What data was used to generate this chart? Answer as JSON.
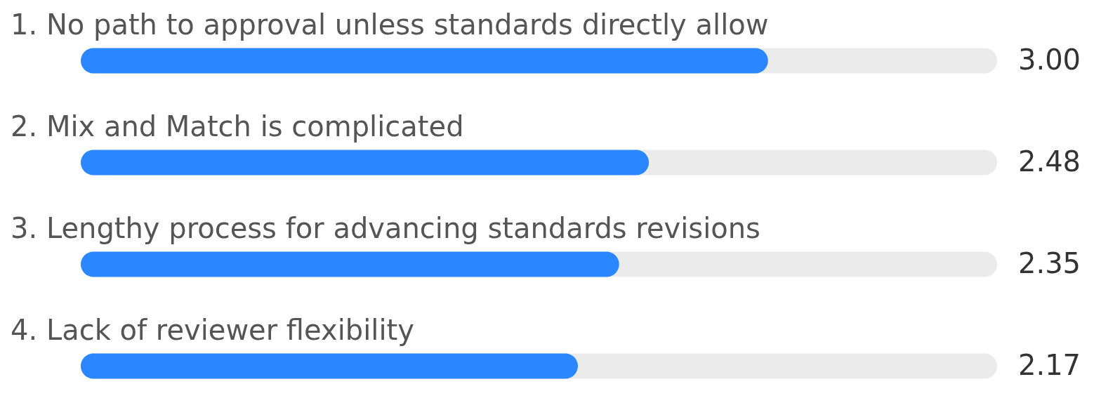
{
  "chart_data": {
    "type": "bar",
    "orientation": "horizontal",
    "categories": [
      "1.  No path to approval unless standards directly allow",
      "2.  Mix and Match is complicated",
      "3.  Lengthy process for advancing standards revisions",
      "4.  Lack of reviewer flexibility"
    ],
    "values": [
      3.0,
      2.48,
      2.35,
      2.17
    ],
    "value_labels": [
      "3.00",
      "2.48",
      "2.35",
      "2.17"
    ],
    "color": "#2b87ff",
    "xlim": [
      0,
      4
    ]
  }
}
